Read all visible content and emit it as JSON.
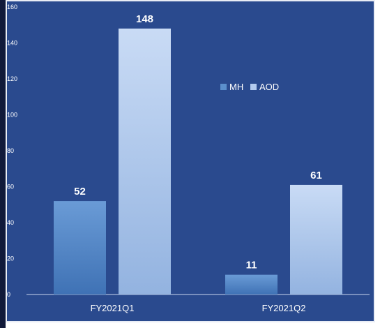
{
  "chart_data": {
    "type": "bar",
    "title": "",
    "xlabel": "",
    "ylabel": "",
    "categories": [
      "FY2021Q1",
      "FY2021Q2"
    ],
    "series": [
      {
        "name": "MH",
        "values": [
          52,
          11
        ],
        "color": "#5b8fcc"
      },
      {
        "name": "AOD",
        "values": [
          148,
          61
        ],
        "color": "#b3cbef"
      }
    ],
    "ylim": [
      0,
      160
    ],
    "yticks": [
      0,
      20,
      40,
      60,
      80,
      100,
      120,
      140,
      160
    ],
    "grid": false,
    "legend_position": "right-middle"
  },
  "colors": {
    "background": "#2a4a8e",
    "text": "#ffffff",
    "axis": "#c9d6ee"
  }
}
